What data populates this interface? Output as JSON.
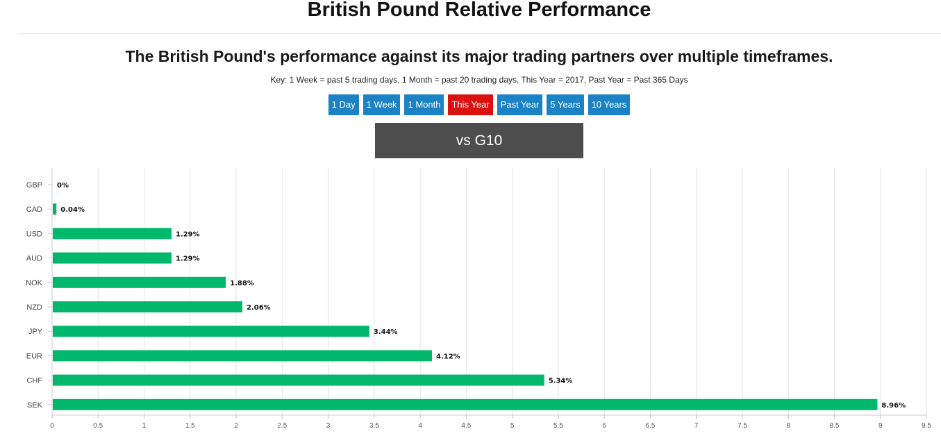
{
  "header": {
    "title": "British Pound Relative Performance",
    "subtitle": "The British Pound's performance against its major trading partners over multiple timeframes.",
    "key": "Key: 1 Week = past 5 trading days, 1 Month = past 20 trading days, This Year = 2017, Past Year = Past 365 Days"
  },
  "timeframes": [
    {
      "label": "1 Day",
      "active": false
    },
    {
      "label": "1 Week",
      "active": false
    },
    {
      "label": "1 Month",
      "active": false
    },
    {
      "label": "This Year",
      "active": true
    },
    {
      "label": "Past Year",
      "active": false
    },
    {
      "label": "5 Years",
      "active": false
    },
    {
      "label": "10 Years",
      "active": false
    }
  ],
  "compare_button": "vs G10",
  "colors": {
    "bar": "#00b86b",
    "active_button": "#d9120f",
    "button": "#1a82c5",
    "compare_bg": "#4d4d4d"
  },
  "chart_data": {
    "type": "bar",
    "orientation": "horizontal",
    "categories": [
      "GBP",
      "CAD",
      "USD",
      "AUD",
      "NOK",
      "NZD",
      "JPY",
      "EUR",
      "CHF",
      "SEK"
    ],
    "values": [
      0,
      0.04,
      1.29,
      1.29,
      1.88,
      2.06,
      3.44,
      4.12,
      5.34,
      8.96
    ],
    "data_labels": [
      "0%",
      "0.04%",
      "1.29%",
      "1.29%",
      "1.88%",
      "2.06%",
      "3.44%",
      "4.12%",
      "5.34%",
      "8.96%"
    ],
    "xlim": [
      0,
      9.5
    ],
    "xticks": [
      "0",
      "0.5",
      "1",
      "1.5",
      "2",
      "2.5",
      "3",
      "3.5",
      "4",
      "4.5",
      "5",
      "5.5",
      "6",
      "6.5",
      "7",
      "7.5",
      "8",
      "8.5",
      "9",
      "9.5"
    ],
    "grid": "vertical",
    "legend": "none"
  }
}
